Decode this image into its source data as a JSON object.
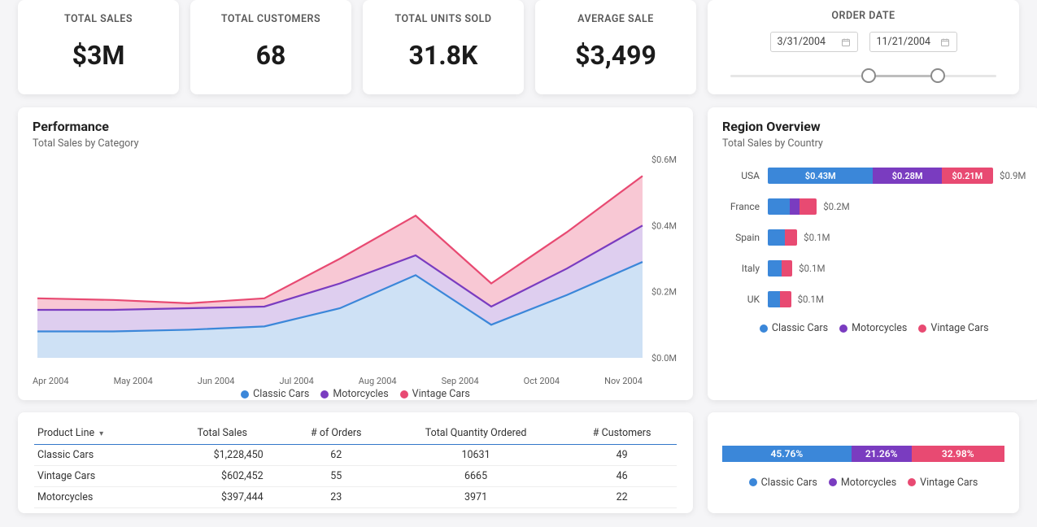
{
  "colors": {
    "classic": "#3b87d9",
    "motorcycles": "#7a3cc0",
    "vintage": "#e84a72",
    "bg": "#f5f5f7",
    "card": "#ffffff",
    "text_muted": "#666666",
    "axis": "#666666"
  },
  "kpis": [
    {
      "label": "TOTAL SALES",
      "value": "$3M"
    },
    {
      "label": "TOTAL CUSTOMERS",
      "value": "68"
    },
    {
      "label": "TOTAL UNITS SOLD",
      "value": "31.8K"
    },
    {
      "label": "AVERAGE SALE",
      "value": "$3,499"
    }
  ],
  "order_date": {
    "title": "ORDER DATE",
    "from": "3/31/2004",
    "to": "11/21/2004",
    "slider_start_pct": 52,
    "slider_end_pct": 78
  },
  "performance": {
    "title": "Performance",
    "subtitle": "Total Sales by Category",
    "type": "area",
    "x_labels": [
      "Apr 2004",
      "May 2004",
      "Jun 2004",
      "Jul 2004",
      "Aug 2004",
      "Sep 2004",
      "Oct 2004",
      "Nov 2004"
    ],
    "y_ticks": [
      0.0,
      0.2,
      0.4,
      0.6
    ],
    "y_tick_labels": [
      "$0.0M",
      "$0.2M",
      "$0.4M",
      "$0.6M"
    ],
    "ylim": [
      0,
      0.6
    ],
    "series": [
      {
        "name": "Classic Cars",
        "color": "#3b87d9",
        "values": [
          0.08,
          0.08,
          0.085,
          0.095,
          0.15,
          0.25,
          0.1,
          0.19,
          0.29
        ]
      },
      {
        "name": "Motorcycles",
        "color": "#7a3cc0",
        "values": [
          0.145,
          0.145,
          0.15,
          0.155,
          0.225,
          0.31,
          0.155,
          0.27,
          0.4
        ]
      },
      {
        "name": "Vintage Cars",
        "color": "#e84a72",
        "values": [
          0.18,
          0.175,
          0.165,
          0.18,
          0.3,
          0.43,
          0.225,
          0.38,
          0.55
        ]
      }
    ],
    "legend": [
      "Classic Cars",
      "Motorcycles",
      "Vintage Cars"
    ]
  },
  "region": {
    "title": "Region Overview",
    "subtitle": "Total Sales by Country",
    "max": 0.93,
    "rows": [
      {
        "country": "USA",
        "total": "$0.9M",
        "segs": [
          {
            "label": "$0.43M",
            "value": 0.43,
            "color": "#3b87d9"
          },
          {
            "label": "$0.28M",
            "value": 0.28,
            "color": "#7a3cc0"
          },
          {
            "label": "$0.21M",
            "value": 0.21,
            "color": "#e84a72"
          }
        ]
      },
      {
        "country": "France",
        "total": "$0.2M",
        "segs": [
          {
            "label": "",
            "value": 0.09,
            "color": "#3b87d9"
          },
          {
            "label": "",
            "value": 0.04,
            "color": "#7a3cc0"
          },
          {
            "label": "",
            "value": 0.07,
            "color": "#e84a72"
          }
        ]
      },
      {
        "country": "Spain",
        "total": "$0.1M",
        "segs": [
          {
            "label": "",
            "value": 0.07,
            "color": "#3b87d9"
          },
          {
            "label": "",
            "value": 0.05,
            "color": "#e84a72"
          }
        ]
      },
      {
        "country": "Italy",
        "total": "$0.1M",
        "segs": [
          {
            "label": "",
            "value": 0.055,
            "color": "#3b87d9"
          },
          {
            "label": "",
            "value": 0.045,
            "color": "#e84a72"
          }
        ]
      },
      {
        "country": "UK",
        "total": "$0.1M",
        "segs": [
          {
            "label": "",
            "value": 0.05,
            "color": "#3b87d9"
          },
          {
            "label": "",
            "value": 0.045,
            "color": "#e84a72"
          }
        ]
      }
    ],
    "legend": [
      "Classic Cars",
      "Motorcycles",
      "Vintage Cars"
    ]
  },
  "table": {
    "columns": [
      "Product Line",
      "Total Sales",
      "# of Orders",
      "Total Quantity Ordered",
      "# Customers"
    ],
    "sort_col": 0,
    "rows": [
      [
        "Classic Cars",
        "$1,228,450",
        "62",
        "10631",
        "49"
      ],
      [
        "Vintage Cars",
        "$602,452",
        "55",
        "6665",
        "46"
      ],
      [
        "Motorcycles",
        "$397,444",
        "23",
        "3971",
        "22"
      ]
    ]
  },
  "distribution": {
    "segs": [
      {
        "label": "45.76%",
        "value": 45.76,
        "color": "#3b87d9"
      },
      {
        "label": "21.26%",
        "value": 21.26,
        "color": "#7a3cc0"
      },
      {
        "label": "32.98%",
        "value": 32.98,
        "color": "#e84a72"
      }
    ],
    "legend": [
      "Classic Cars",
      "Motorcycles",
      "Vintage Cars"
    ]
  }
}
